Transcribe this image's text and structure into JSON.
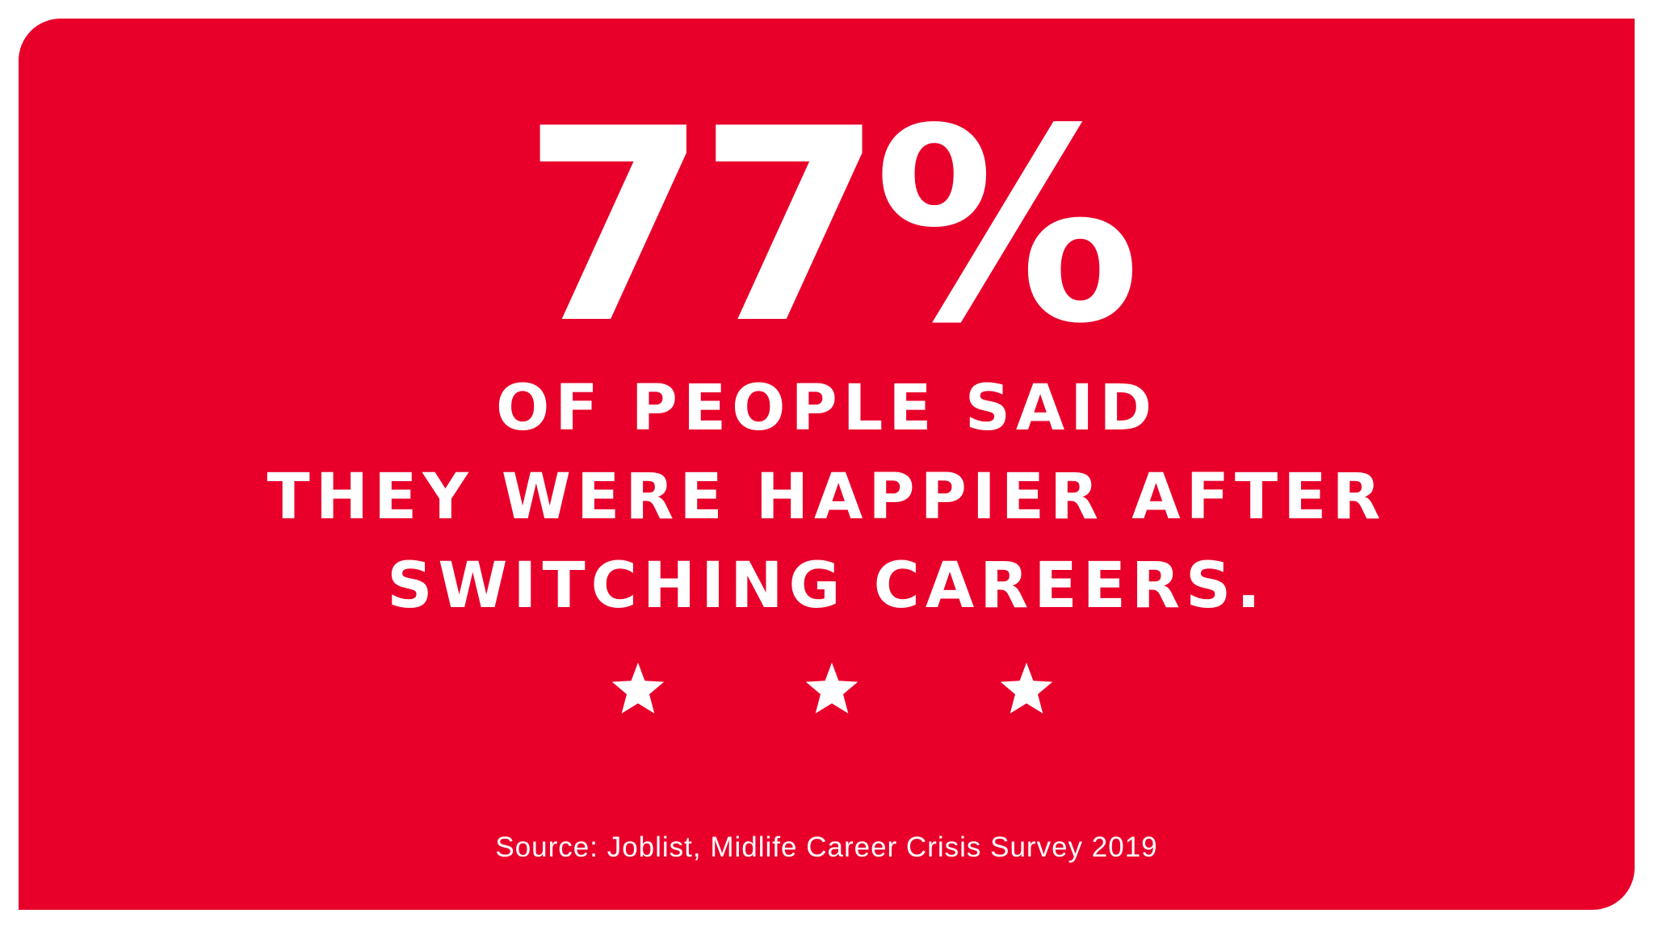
{
  "stat": {
    "value": "77%"
  },
  "headline": {
    "line1": "OF PEOPLE SAID",
    "line2": "THEY WERE HAPPIER AFTER",
    "line3": "SWITCHING CAREERS."
  },
  "stars": {
    "count": 3,
    "icon": "star-icon"
  },
  "source": {
    "text": "Source: Joblist, Midlife Career Crisis Survey 2019"
  },
  "colors": {
    "background": "#e8002a",
    "text": "#ffffff",
    "page": "#ffffff"
  }
}
